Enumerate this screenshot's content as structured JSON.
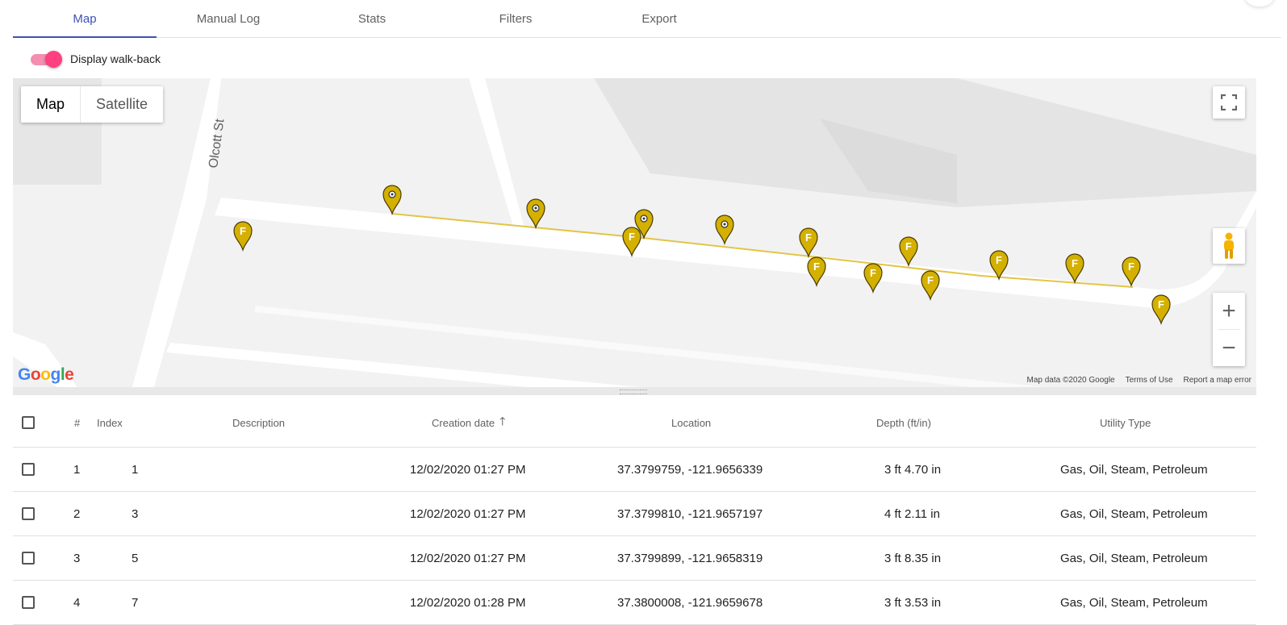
{
  "tabs": [
    {
      "label": "Map",
      "active": true
    },
    {
      "label": "Manual Log",
      "active": false
    },
    {
      "label": "Stats",
      "active": false
    },
    {
      "label": "Filters",
      "active": false
    },
    {
      "label": "Export",
      "active": false
    }
  ],
  "toggle": {
    "label": "Display walk-back",
    "on": true,
    "color": "#ff4081"
  },
  "map": {
    "type_control": {
      "map": "Map",
      "satellite": "Satellite"
    },
    "street_label": "Olcott St",
    "zoom_in": "+",
    "zoom_out": "−",
    "logo": "Google",
    "attribution": {
      "data": "Map data ©2020 Google",
      "terms": "Terms of Use",
      "report": "Report a map error"
    },
    "marker_letter": "F",
    "marker_color": "#d4b000",
    "path_color": "#e0c040"
  },
  "table": {
    "headers": {
      "index_num": "#",
      "index": "Index",
      "description": "Description",
      "creation_date": "Creation date",
      "location": "Location",
      "depth": "Depth (ft/in)",
      "utility_type": "Utility Type"
    },
    "sort_icon": "arrow-up-icon",
    "rows": [
      {
        "num": "1",
        "index": "1",
        "description": "",
        "date": "12/02/2020 01:27 PM",
        "location": "37.3799759, -121.9656339",
        "depth": "3 ft 4.70 in",
        "utility": "Gas, Oil, Steam, Petroleum"
      },
      {
        "num": "2",
        "index": "3",
        "description": "",
        "date": "12/02/2020 01:27 PM",
        "location": "37.3799810, -121.9657197",
        "depth": "4 ft 2.11 in",
        "utility": "Gas, Oil, Steam, Petroleum"
      },
      {
        "num": "3",
        "index": "5",
        "description": "",
        "date": "12/02/2020 01:27 PM",
        "location": "37.3799899, -121.9658319",
        "depth": "3 ft 8.35 in",
        "utility": "Gas, Oil, Steam, Petroleum"
      },
      {
        "num": "4",
        "index": "7",
        "description": "",
        "date": "12/02/2020 01:28 PM",
        "location": "37.3800008, -121.9659678",
        "depth": "3 ft 3.53 in",
        "utility": "Gas, Oil, Steam, Petroleum"
      }
    ]
  }
}
